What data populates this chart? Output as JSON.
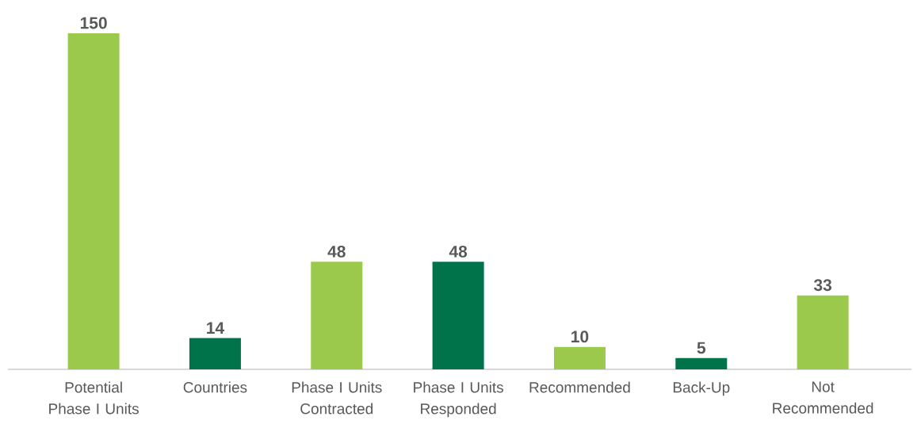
{
  "chart_data": {
    "type": "bar",
    "categories": [
      "Potential Phase I Units",
      "Countries",
      "Phase I Units Contracted",
      "Phase I Units Responded",
      "Recommended",
      "Back-Up",
      "Not Recommended"
    ],
    "values": [
      150,
      14,
      48,
      48,
      10,
      5,
      33
    ],
    "colors": [
      "#9bc94c",
      "#00734a",
      "#9bc94c",
      "#00734a",
      "#9bc94c",
      "#00734a",
      "#9bc94c"
    ],
    "data_labels": true
  }
}
